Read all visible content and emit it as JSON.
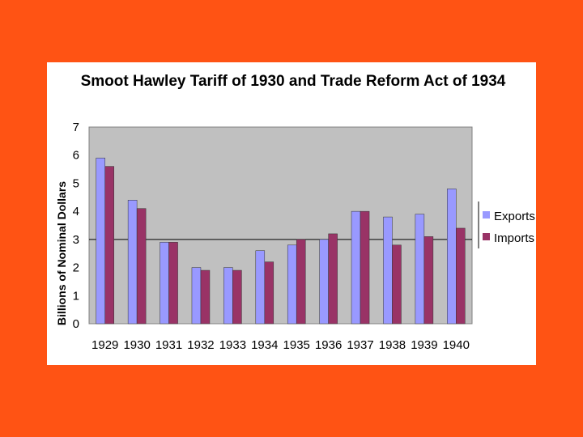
{
  "chart_data": {
    "type": "bar",
    "title": "Smoot Hawley Tariff of 1930 and Trade Reform Act of 1934",
    "ylabel": "Billions of Nominal Dollars",
    "xlabel": "",
    "categories": [
      "1929",
      "1930",
      "1931",
      "1932",
      "1933",
      "1934",
      "1935",
      "1936",
      "1937",
      "1938",
      "1939",
      "1940"
    ],
    "series": [
      {
        "name": "Exports",
        "color": "#9999ff",
        "values": [
          5.9,
          4.4,
          2.9,
          2.0,
          2.0,
          2.6,
          2.8,
          3.0,
          4.0,
          3.8,
          3.9,
          4.8
        ]
      },
      {
        "name": "Imports",
        "color": "#993366",
        "values": [
          5.6,
          4.1,
          2.9,
          1.9,
          1.9,
          2.2,
          3.0,
          3.2,
          4.0,
          2.8,
          3.1,
          3.4
        ]
      }
    ],
    "ylim": [
      0,
      7
    ],
    "yticks": [
      "0",
      "1",
      "2",
      "3",
      "4",
      "5",
      "6",
      "7"
    ],
    "plot_background": "#c0c0c0",
    "reference_line": 3,
    "grid": false,
    "legend_position": "right"
  },
  "colors": {
    "page_background": "#ff5314",
    "panel_background": "#ffffff"
  }
}
